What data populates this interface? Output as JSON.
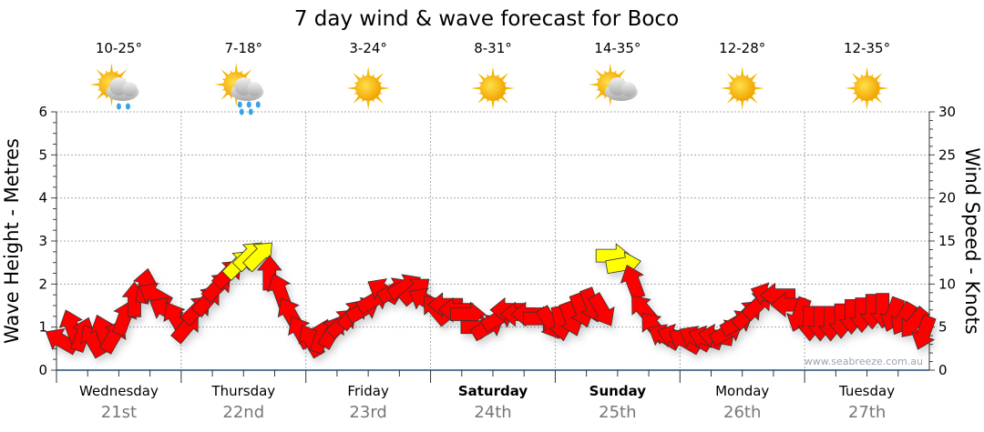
{
  "chart_data": {
    "type": "scatter",
    "title": "7 day wind & wave forecast for Boco",
    "ylabel_left": "Wave Height - Metres",
    "ylabel_right": "Wind Speed - Knots",
    "ylim_left": [
      0,
      6
    ],
    "ylim_right": [
      0,
      30
    ],
    "yticks_left": [
      "0",
      "1",
      "2",
      "3",
      "4",
      "5",
      "6"
    ],
    "yticks_right": [
      "0",
      "5",
      "10",
      "15",
      "20",
      "25",
      "30"
    ],
    "grid": true,
    "watermark": "www.seabreeze.com.au",
    "days": [
      {
        "name": "Wednesday",
        "date": "21st",
        "temp": "10-25°",
        "icon": "sun-cloud-showers-icon",
        "weekend": false
      },
      {
        "name": "Thursday",
        "date": "22nd",
        "temp": "7-18°",
        "icon": "sun-cloud-rain-icon",
        "weekend": false
      },
      {
        "name": "Friday",
        "date": "23rd",
        "temp": "3-24°",
        "icon": "sun-icon",
        "weekend": false
      },
      {
        "name": "Saturday",
        "date": "24th",
        "temp": "8-31°",
        "icon": "sun-icon",
        "weekend": true
      },
      {
        "name": "Sunday",
        "date": "25th",
        "temp": "14-35°",
        "icon": "sun-cloud-icon",
        "weekend": true
      },
      {
        "name": "Monday",
        "date": "26th",
        "temp": "12-28°",
        "icon": "sun-icon",
        "weekend": false
      },
      {
        "name": "Tuesday",
        "date": "27th",
        "temp": "12-35°",
        "icon": "sun-icon",
        "weekend": false
      }
    ],
    "interval_hours": 2,
    "wind_knots": [
      3.4,
      5.0,
      4.1,
      3.4,
      4.4,
      3.9,
      6.0,
      8.1,
      9.7,
      8.7,
      7.0,
      6.0,
      5.0,
      7.0,
      8.1,
      9.7,
      11.2,
      12.3,
      13.3,
      13.3,
      11.2,
      9.2,
      6.5,
      4.4,
      3.4,
      3.9,
      4.4,
      5.5,
      6.5,
      7.0,
      8.1,
      9.2,
      9.3,
      9.7,
      9.2,
      8.1,
      7.0,
      7.6,
      7.0,
      6.5,
      5.0,
      5.0,
      6.0,
      7.0,
      6.5,
      6.5,
      6.0,
      5.5,
      5.5,
      6.0,
      7.0,
      7.6,
      7.0,
      13.3,
      12.3,
      10.2,
      7.0,
      5.0,
      3.9,
      3.9,
      3.4,
      3.7,
      3.7,
      3.9,
      4.4,
      5.5,
      6.5,
      7.6,
      8.7,
      8.7,
      7.6,
      6.5,
      5.5,
      5.5,
      5.5,
      5.8,
      6.3,
      6.5,
      6.9,
      7.0,
      6.5,
      6.0,
      5.5,
      4.4
    ],
    "wind_arrow_bearing_deg": [
      300,
      340,
      20,
      330,
      340,
      30,
      20,
      0,
      10,
      300,
      300,
      330,
      40,
      45,
      40,
      45,
      45,
      45,
      45,
      45,
      0,
      340,
      330,
      330,
      330,
      20,
      30,
      45,
      40,
      60,
      60,
      300,
      60,
      60,
      50,
      300,
      320,
      270,
      270,
      90,
      90,
      60,
      60,
      270,
      270,
      270,
      90,
      150,
      170,
      160,
      160,
      160,
      150,
      90,
      80,
      340,
      320,
      320,
      300,
      290,
      300,
      300,
      290,
      280,
      60,
      60,
      45,
      45,
      290,
      270,
      270,
      200,
      180,
      180,
      180,
      180,
      180,
      180,
      180,
      180,
      200,
      210,
      220,
      200
    ],
    "strong_wind_threshold_knots": 12,
    "colors": {
      "normal": "#ff0000",
      "strong": "#ffff00",
      "axis": "#1f4e79",
      "grid": "#aaaaaa"
    }
  }
}
